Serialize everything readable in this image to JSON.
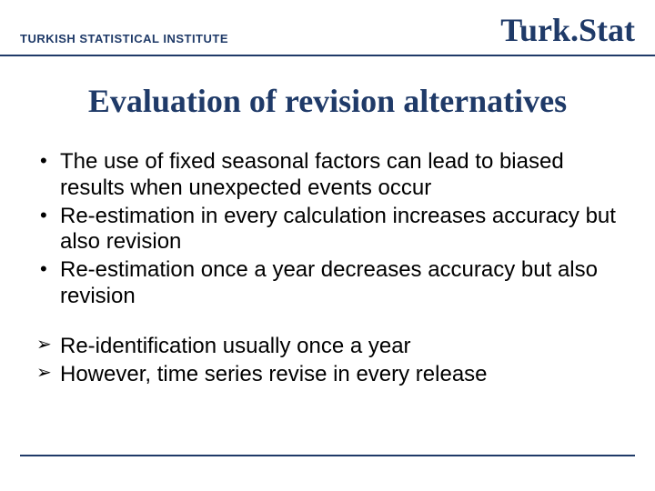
{
  "header": {
    "institute": "TURKISH STATISTICAL INSTITUTE",
    "logo": "Turk.Stat"
  },
  "title": "Evaluation of revision alternatives",
  "bullets": [
    "The use of fixed seasonal factors can lead to biased results when unexpected events occur",
    "Re-estimation in every calculation increases accuracy but also revision",
    "Re-estimation once a year decreases accuracy but also revision"
  ],
  "arrows": [
    "Re-identification usually once a year",
    "However, time series revise in every release"
  ],
  "colors": {
    "primary": "#1f3a68",
    "text": "#000000",
    "background": "#ffffff"
  },
  "typography": {
    "institute_fontsize": 13,
    "logo_fontsize": 36,
    "title_fontsize": 36,
    "body_fontsize": 24,
    "heading_font": "Times New Roman",
    "body_font": "Arial"
  }
}
